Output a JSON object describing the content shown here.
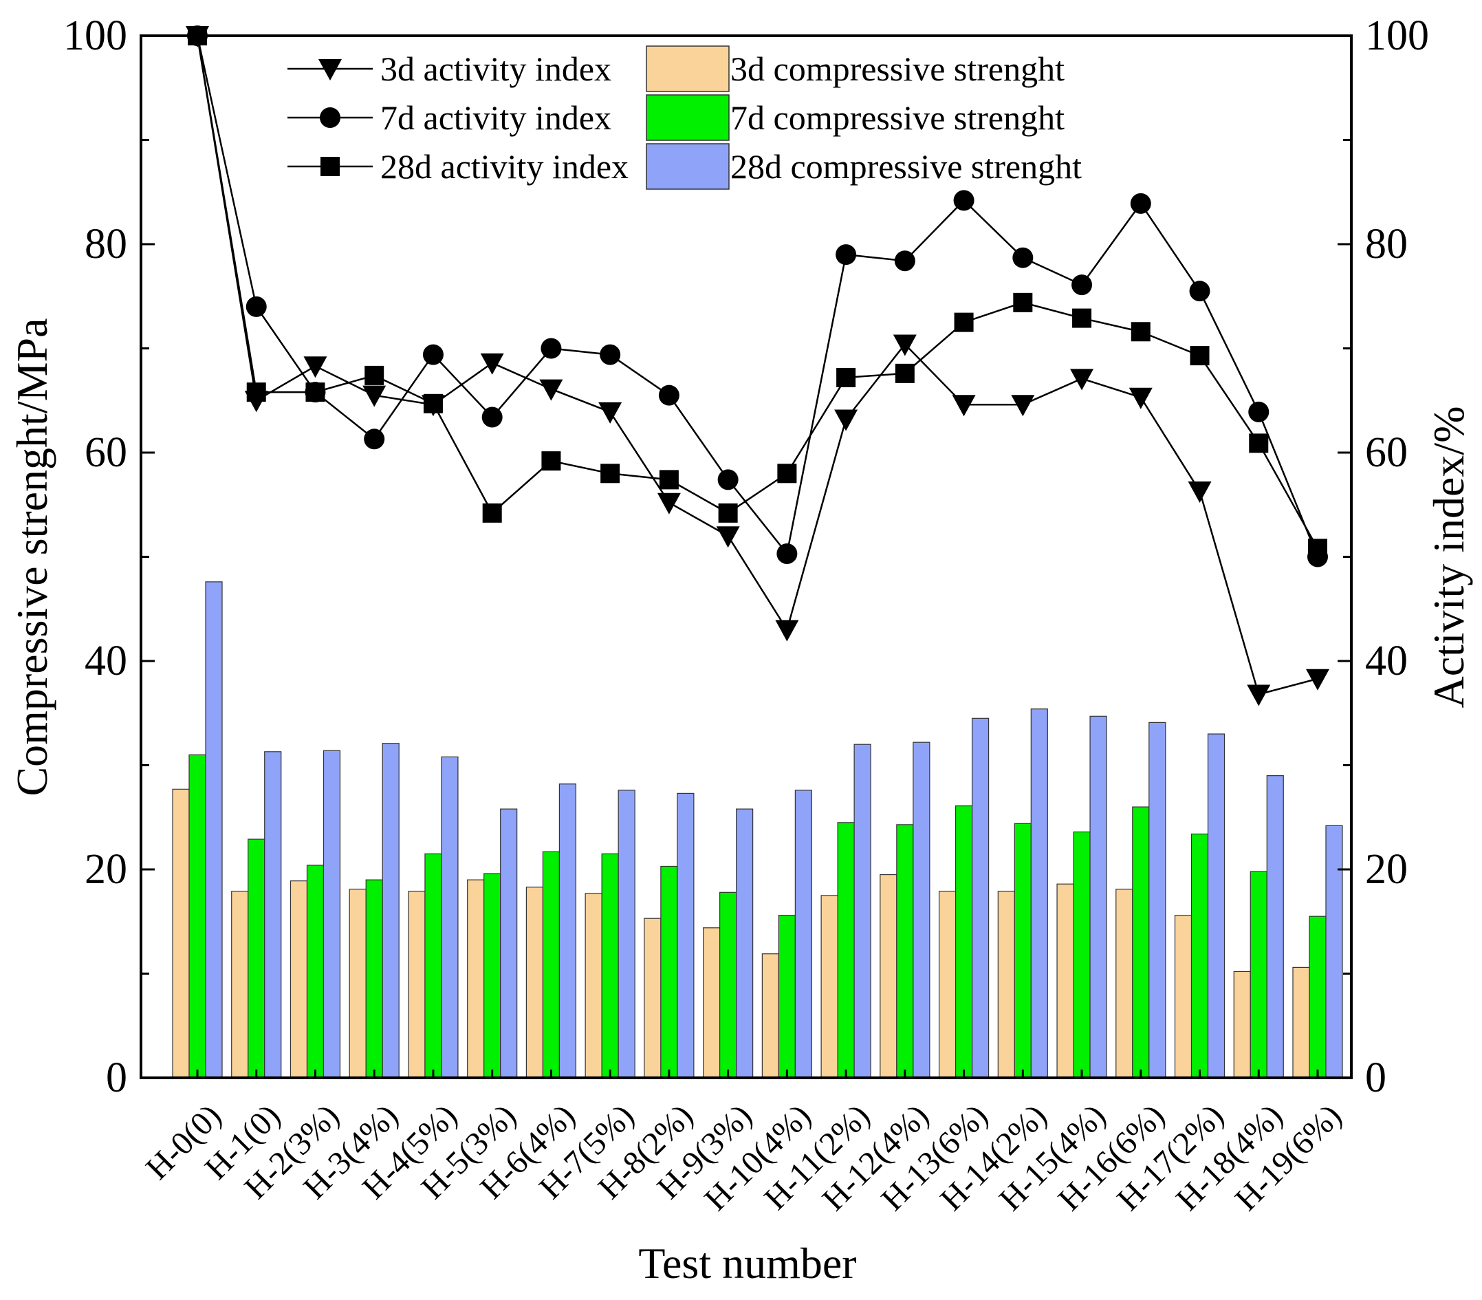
{
  "chart_data": {
    "type": "bar",
    "xlabel": "Test number",
    "ylabel_left": "Compressive strenght/MPa",
    "ylabel_right": "Activity index/%",
    "ylim": [
      0,
      100
    ],
    "ylim_right": [
      0,
      100
    ],
    "yticks": [
      "0",
      "20",
      "40",
      "60",
      "80",
      "100"
    ],
    "yticks_right": [
      "0",
      "20",
      "40",
      "60",
      "80",
      "100"
    ],
    "grid": false,
    "legend_position": "top",
    "categories": [
      "H-0(0)",
      "H-1(0)",
      "H-2(3%)",
      "H-3(4%)",
      "H-4(5%)",
      "H-5(3%)",
      "H-6(4%)",
      "H-7(5%)",
      "H-8(2%)",
      "H-9(3%)",
      "H-10(4%)",
      "H-11(2%)",
      "H-12(4%)",
      "H-13(6%)",
      "H-14(2%)",
      "H-15(4%)",
      "H-16(6%)",
      "H-17(2%)",
      "H-18(4%)",
      "H-19(6%)"
    ],
    "bar_series": [
      {
        "name": "3d compressive strenght",
        "color": "#FAD39A",
        "values": [
          27.7,
          17.9,
          18.9,
          18.1,
          17.9,
          19.0,
          18.3,
          17.7,
          15.3,
          14.4,
          11.9,
          17.5,
          19.5,
          17.9,
          17.9,
          18.6,
          18.1,
          15.6,
          10.2,
          10.6
        ]
      },
      {
        "name": "7d compressive strenght",
        "color": "#00F000",
        "values": [
          31.0,
          22.9,
          20.4,
          19.0,
          21.5,
          19.6,
          21.7,
          21.5,
          20.3,
          17.8,
          15.6,
          24.5,
          24.3,
          26.1,
          24.4,
          23.6,
          26.0,
          23.4,
          19.8,
          15.5
        ]
      },
      {
        "name": "28d compressive strenght",
        "color": "#8FA3F8",
        "values": [
          47.6,
          31.3,
          31.4,
          32.1,
          30.8,
          25.8,
          28.2,
          27.6,
          27.3,
          25.8,
          27.6,
          32.0,
          32.2,
          34.5,
          35.4,
          34.7,
          34.1,
          33.0,
          29.0,
          24.2
        ]
      }
    ],
    "line_series": [
      {
        "name": "3d activity index",
        "marker": "triangle-down",
        "values": [
          100,
          65,
          68.3,
          65.5,
          64.6,
          68.6,
          66.1,
          63.9,
          55.2,
          52.0,
          43.0,
          63.2,
          70.4,
          64.6,
          64.6,
          67.1,
          65.3,
          56.3,
          36.8,
          38.3
        ]
      },
      {
        "name": "7d activity index",
        "marker": "circle",
        "values": [
          100,
          74.0,
          65.8,
          61.3,
          69.4,
          63.4,
          70.0,
          69.4,
          65.5,
          57.4,
          50.3,
          79.0,
          78.4,
          84.2,
          78.7,
          76.1,
          83.9,
          75.5,
          63.9,
          50.0
        ]
      },
      {
        "name": "28d activity index",
        "marker": "square",
        "values": [
          100,
          65.8,
          65.8,
          67.4,
          64.7,
          54.2,
          59.2,
          58.0,
          57.4,
          54.2,
          58.0,
          67.2,
          67.6,
          72.5,
          74.4,
          72.9,
          71.6,
          69.3,
          60.9,
          50.8
        ]
      }
    ]
  }
}
